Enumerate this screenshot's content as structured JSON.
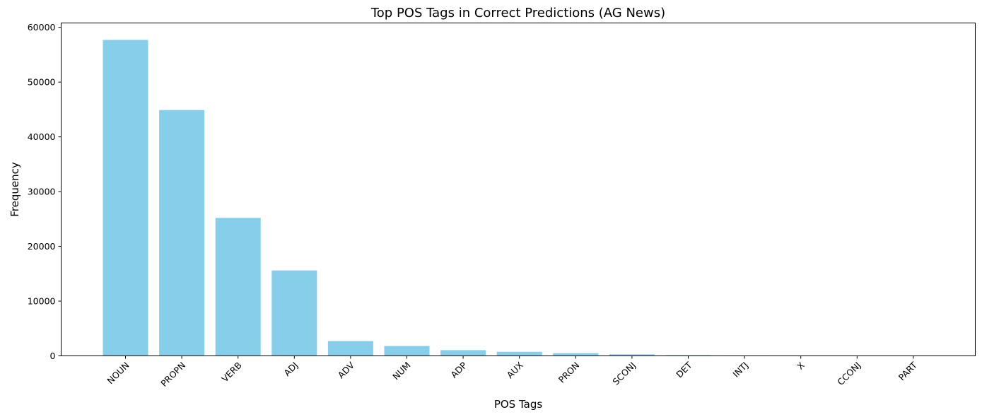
{
  "chart_data": {
    "type": "bar",
    "title": "Top POS Tags in Correct Predictions (AG News)",
    "xlabel": "POS Tags",
    "ylabel": "Frequency",
    "categories": [
      "NOUN",
      "PROPN",
      "VERB",
      "ADJ",
      "ADV",
      "NUM",
      "ADP",
      "AUX",
      "PRON",
      "SCONJ",
      "DET",
      "INTJ",
      "X",
      "CCONJ",
      "PART"
    ],
    "values": [
      57700,
      44900,
      25200,
      15600,
      2700,
      1800,
      1050,
      750,
      500,
      280,
      110,
      70,
      60,
      25,
      15
    ],
    "ylim": [
      0,
      60800
    ],
    "yticks": [
      0,
      10000,
      20000,
      30000,
      40000,
      50000,
      60000
    ],
    "bar_color": "#87ceeb",
    "grid": false,
    "legend": "none"
  }
}
